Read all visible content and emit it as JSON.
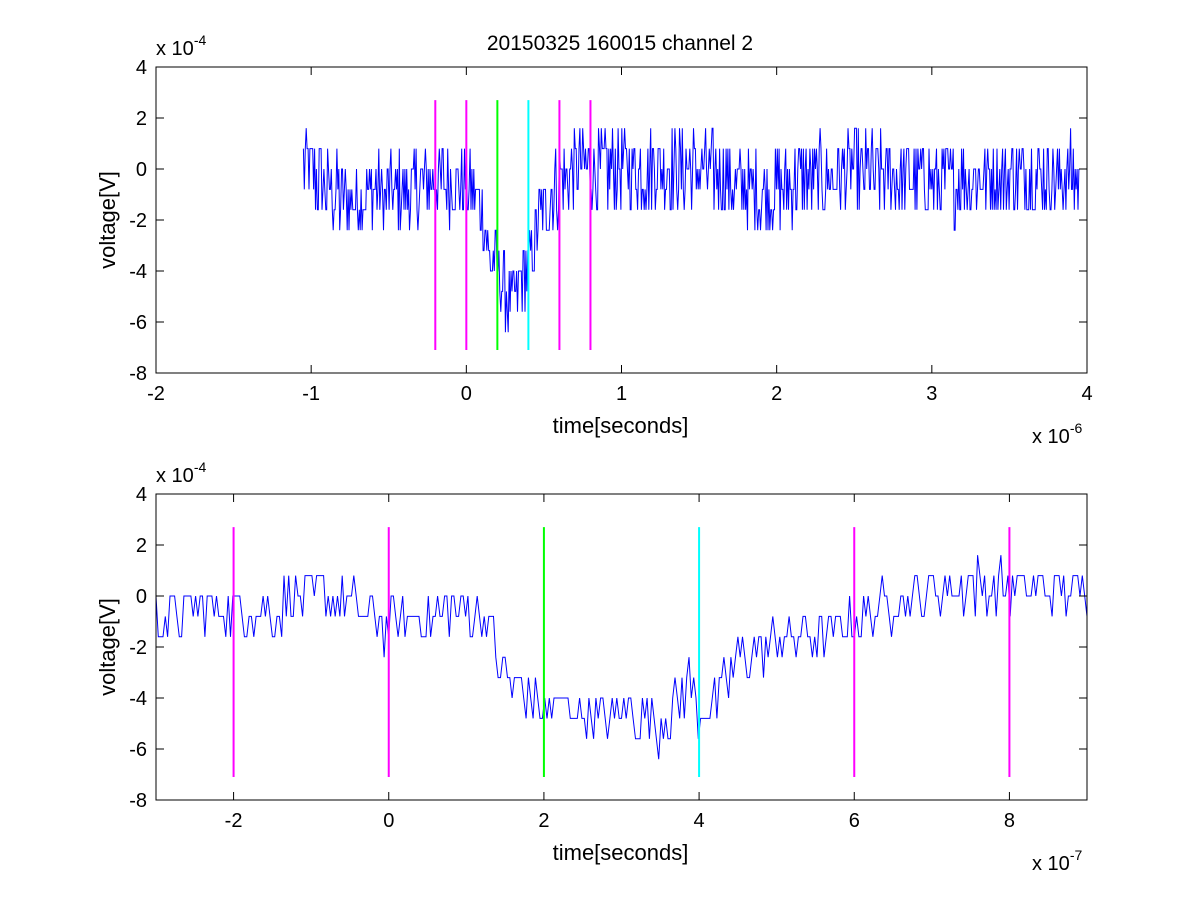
{
  "figure": {
    "title": "20150325 160015 channel 2"
  },
  "chart_data": [
    {
      "type": "line",
      "title": "20150325 160015 channel 2",
      "xlabel": "time[seconds]",
      "ylabel": "voltage[V]",
      "x_multiplier": {
        "base": "x 10",
        "exp": "-6"
      },
      "y_multiplier": {
        "base": "x 10",
        "exp": "-4"
      },
      "xlim": [
        -2,
        4
      ],
      "ylim": [
        -8,
        4
      ],
      "xticks": [
        "-2",
        "-1",
        "0",
        "1",
        "2",
        "3",
        "4"
      ],
      "yticks": [
        "-8",
        "-6",
        "-4",
        "-2",
        "0",
        "2",
        "4"
      ],
      "grid": false,
      "trace_color": "#0000ff",
      "trace_x_range": [
        -1.05,
        3.95
      ],
      "trace_envelope": [
        [
          -1.05,
          0.2
        ],
        [
          -0.9,
          -0.8
        ],
        [
          -0.8,
          -1.2
        ],
        [
          -0.6,
          -0.9
        ],
        [
          -0.4,
          -1.0
        ],
        [
          -0.3,
          -0.6
        ],
        [
          -0.15,
          -0.5
        ],
        [
          0.0,
          -0.7
        ],
        [
          0.1,
          -1.5
        ],
        [
          0.15,
          -3.5
        ],
        [
          0.2,
          -4.0
        ],
        [
          0.25,
          -4.8
        ],
        [
          0.3,
          -5.2
        ],
        [
          0.35,
          -4.6
        ],
        [
          0.4,
          -3.8
        ],
        [
          0.45,
          -2.4
        ],
        [
          0.5,
          -1.6
        ],
        [
          0.6,
          -0.4
        ],
        [
          0.7,
          -0.1
        ],
        [
          1.0,
          0.0
        ],
        [
          1.5,
          0.0
        ],
        [
          1.9,
          -0.9
        ],
        [
          2.1,
          -0.6
        ],
        [
          2.5,
          -0.1
        ],
        [
          3.0,
          -0.5
        ],
        [
          3.5,
          -0.3
        ],
        [
          3.95,
          -0.3
        ]
      ],
      "markers": [
        {
          "x": -0.2,
          "color": "#ff00ff"
        },
        {
          "x": 0.0,
          "color": "#ff00ff"
        },
        {
          "x": 0.2,
          "color": "#00ff00"
        },
        {
          "x": 0.4,
          "color": "#00ffff"
        },
        {
          "x": 0.6,
          "color": "#ff00ff"
        },
        {
          "x": 0.8,
          "color": "#ff00ff"
        }
      ],
      "marker_y_range": [
        -7.1,
        2.7
      ]
    },
    {
      "type": "line",
      "xlabel": "time[seconds]",
      "ylabel": "voltage[V]",
      "x_multiplier": {
        "base": "x 10",
        "exp": "-7"
      },
      "y_multiplier": {
        "base": "x 10",
        "exp": "-4"
      },
      "xlim": [
        -3,
        9
      ],
      "ylim": [
        -8,
        4
      ],
      "xticks": [
        "-2",
        "0",
        "2",
        "4",
        "6",
        "8"
      ],
      "yticks": [
        "-8",
        "-6",
        "-4",
        "-2",
        "0",
        "2",
        "4"
      ],
      "grid": false,
      "trace_color": "#0000ff",
      "trace_x_range": [
        -3,
        9
      ],
      "trace_envelope": [
        [
          -3.0,
          -1.0
        ],
        [
          -2.5,
          -0.4
        ],
        [
          -2.0,
          -0.5
        ],
        [
          -1.5,
          -0.6
        ],
        [
          -1.0,
          0.2
        ],
        [
          -0.5,
          -0.3
        ],
        [
          0.0,
          -1.2
        ],
        [
          0.5,
          -0.8
        ],
        [
          1.0,
          -0.5
        ],
        [
          1.3,
          -1.0
        ],
        [
          1.4,
          -2.5
        ],
        [
          1.6,
          -3.5
        ],
        [
          1.8,
          -3.8
        ],
        [
          2.0,
          -4.7
        ],
        [
          2.2,
          -4.2
        ],
        [
          2.5,
          -4.5
        ],
        [
          2.8,
          -5.0
        ],
        [
          3.0,
          -4.4
        ],
        [
          3.5,
          -5.2
        ],
        [
          3.9,
          -3.3
        ],
        [
          4.0,
          -4.6
        ],
        [
          4.2,
          -4.2
        ],
        [
          4.5,
          -2.6
        ],
        [
          5.0,
          -1.8
        ],
        [
          5.5,
          -1.5
        ],
        [
          6.0,
          -1.0
        ],
        [
          6.5,
          -0.3
        ],
        [
          7.0,
          0.1
        ],
        [
          7.5,
          0.4
        ],
        [
          8.0,
          0.3
        ],
        [
          8.5,
          0.2
        ],
        [
          9.0,
          0.3
        ]
      ],
      "markers": [
        {
          "x": -2,
          "color": "#ff00ff"
        },
        {
          "x": 0,
          "color": "#ff00ff"
        },
        {
          "x": 2,
          "color": "#00ff00"
        },
        {
          "x": 4,
          "color": "#00ffff"
        },
        {
          "x": 6,
          "color": "#ff00ff"
        },
        {
          "x": 8,
          "color": "#ff00ff"
        }
      ],
      "marker_y_range": [
        -7.1,
        2.7
      ]
    }
  ]
}
